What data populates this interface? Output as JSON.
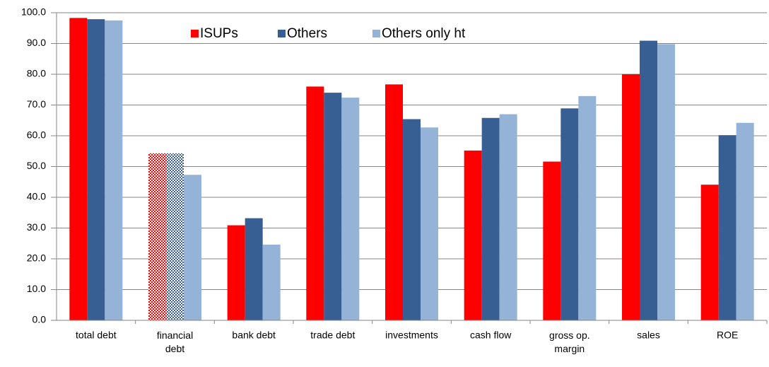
{
  "chart_data": {
    "type": "bar",
    "categories": [
      "total debt",
      "financial debt",
      "bank debt",
      "trade debt",
      "investments",
      "cash flow",
      "gross op. margin",
      "sales",
      "ROE"
    ],
    "series": [
      {
        "name": "ISUPs",
        "color": "#ff0000",
        "values": [
          98.3,
          54.3,
          30.9,
          76.0,
          76.7,
          55.2,
          51.6,
          80.0,
          44.1
        ],
        "patterned_points": [
          1
        ]
      },
      {
        "name": "Others",
        "color": "#375f93",
        "values": [
          97.9,
          54.3,
          33.2,
          74.0,
          65.4,
          65.8,
          68.9,
          90.9,
          60.2
        ],
        "patterned_points": [
          1
        ]
      },
      {
        "name": "Others only ht",
        "color": "#95b3d7",
        "values": [
          97.5,
          47.3,
          24.6,
          72.4,
          62.7,
          67.0,
          72.9,
          89.8,
          64.2
        ],
        "patterned_points": []
      }
    ],
    "ylim": [
      0,
      100
    ],
    "yticks": [
      {
        "value": 0,
        "label": "0.0"
      },
      {
        "value": 10,
        "label": "10.0"
      },
      {
        "value": 20,
        "label": "20.0"
      },
      {
        "value": 30,
        "label": "30.0"
      },
      {
        "value": 40,
        "label": "40.0"
      },
      {
        "value": 50,
        "label": "50.0"
      },
      {
        "value": 60,
        "label": "60.0"
      },
      {
        "value": 70,
        "label": "70.0"
      },
      {
        "value": 80,
        "label": "80.0"
      },
      {
        "value": 90,
        "label": "90.0"
      },
      {
        "value": 100,
        "label": "100.0"
      }
    ],
    "grid": true
  }
}
